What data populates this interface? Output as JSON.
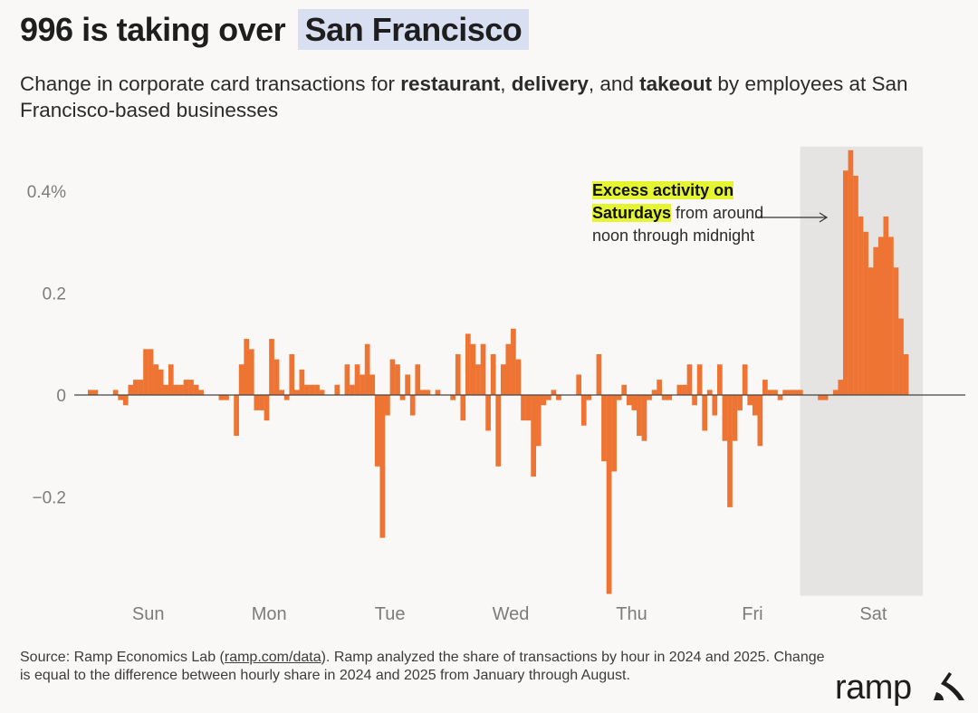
{
  "header": {
    "title_prefix": "996 is taking over",
    "title_highlight": "San Francisco",
    "subtitle_parts": [
      "Change in corporate card transactions for ",
      "restaurant",
      ", ",
      "delivery",
      ", and ",
      "takeout",
      " by employees at San Francisco-based businesses"
    ]
  },
  "annotation": {
    "highlight": "Excess activity on Saturdays",
    "rest": " from around noon through midnight"
  },
  "source": {
    "before": "Source: Ramp Economics Lab (",
    "link": "ramp.com/data",
    "after": "). Ramp analyzed the share of transactions by hour in 2024 and 2025. Change is equal to the difference between hourly share in 2024 and 2025 from January through August."
  },
  "brand": {
    "logo_text": "ramp",
    "logo_icon": "ramp-logo-icon"
  },
  "colors": {
    "bar": "#ee7433",
    "background": "#f9f8f6",
    "shade": "#e5e4e2",
    "title_highlight": "#d8dff0",
    "annotation_highlight": "#e6f531",
    "tick_label": "#7c7c7c"
  },
  "chart_data": {
    "type": "bar",
    "x_label_unit": "hour of week",
    "categories": [
      "Sun",
      "Mon",
      "Tue",
      "Wed",
      "Thu",
      "Fri",
      "Sat"
    ],
    "series": [
      {
        "values": [
          [
            0.01,
            0.01,
            0,
            0,
            0,
            0.01,
            -0.01,
            -0.02,
            0.02,
            0.03,
            0.03,
            0.09,
            0.09,
            0.06,
            0.05,
            0.02,
            0.06,
            0.02,
            0.02,
            0.03,
            0.03,
            0.02,
            0.01,
            0
          ],
          [
            0,
            0,
            -0.01,
            -0.01,
            0,
            -0.08,
            0.06,
            0.11,
            0.09,
            -0.03,
            -0.03,
            -0.05,
            0.11,
            0.07,
            0.01,
            -0.01,
            0.08,
            0.01,
            0.05,
            0.02,
            0.02,
            0.02,
            0.01,
            0
          ],
          [
            0,
            0.02,
            0,
            0.06,
            0.02,
            0.06,
            0.04,
            0.1,
            0.04,
            -0.14,
            -0.28,
            -0.04,
            0.07,
            0.06,
            -0.01,
            0.04,
            -0.04,
            0.06,
            0.01,
            0.01,
            0,
            0.01,
            0,
            0
          ],
          [
            -0.01,
            0.08,
            -0.05,
            0.12,
            0.1,
            0.06,
            0.1,
            -0.07,
            0.08,
            -0.14,
            0.06,
            0.1,
            0.13,
            0.07,
            -0.05,
            -0.05,
            -0.16,
            -0.1,
            -0.02,
            -0.01,
            0.01,
            -0.01,
            0,
            0
          ],
          [
            0,
            0.04,
            -0.06,
            -0.01,
            0,
            0.08,
            -0.13,
            -0.39,
            -0.15,
            -0.01,
            0.02,
            -0.02,
            -0.03,
            -0.08,
            -0.09,
            -0.01,
            0.01,
            0.03,
            -0.01,
            -0.01,
            0,
            0.02,
            0.02,
            0.06
          ],
          [
            -0.02,
            0.06,
            -0.07,
            0.01,
            -0.04,
            0.06,
            -0.09,
            -0.22,
            -0.09,
            -0.03,
            0.06,
            -0.02,
            -0.04,
            -0.1,
            0.03,
            0.01,
            0.01,
            -0.01,
            0.01,
            0.01,
            0.01,
            0.01,
            0,
            0
          ],
          [
            0,
            -0.01,
            -0.01,
            0,
            0.01,
            0.03,
            0.44,
            0.48,
            0.43,
            0.35,
            0.32,
            0.25,
            0.29,
            0.31,
            0.35,
            0.31,
            0.25,
            0.15,
            0.08,
            0,
            0,
            0,
            0,
            0
          ]
        ]
      }
    ],
    "yticks": [
      {
        "value": -0.2,
        "label": "−0.2"
      },
      {
        "value": 0,
        "label": "0"
      },
      {
        "value": 0.2,
        "label": "0.2"
      },
      {
        "value": 0.4,
        "label": "0.4%"
      }
    ],
    "ylim": [
      -0.39,
      0.48
    ],
    "highlight_day": "Sat",
    "grid": false,
    "legend": "none"
  }
}
